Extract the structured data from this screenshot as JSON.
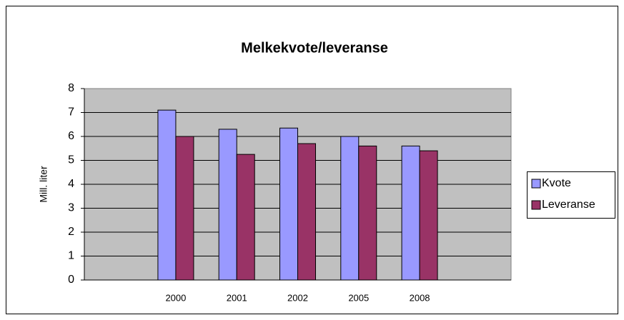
{
  "chart_data": {
    "type": "bar",
    "title": "Melkekvote/leveranse",
    "y_label": "Mill. liter",
    "categories": [
      null,
      "2000",
      "2001",
      "2002",
      "2005",
      "2008",
      null
    ],
    "series": [
      {
        "name": "Kvote",
        "color": "#9999ff",
        "values": [
          null,
          7.1,
          6.3,
          6.35,
          6.0,
          5.6,
          null
        ]
      },
      {
        "name": "Leveranse",
        "color": "#993366",
        "values": [
          null,
          6.0,
          5.25,
          5.7,
          5.6,
          5.4,
          null
        ]
      }
    ],
    "ylim": [
      0,
      8
    ],
    "yticks": [
      0,
      1,
      2,
      3,
      4,
      5,
      6,
      7,
      8
    ],
    "grid": true,
    "legend": "right"
  }
}
